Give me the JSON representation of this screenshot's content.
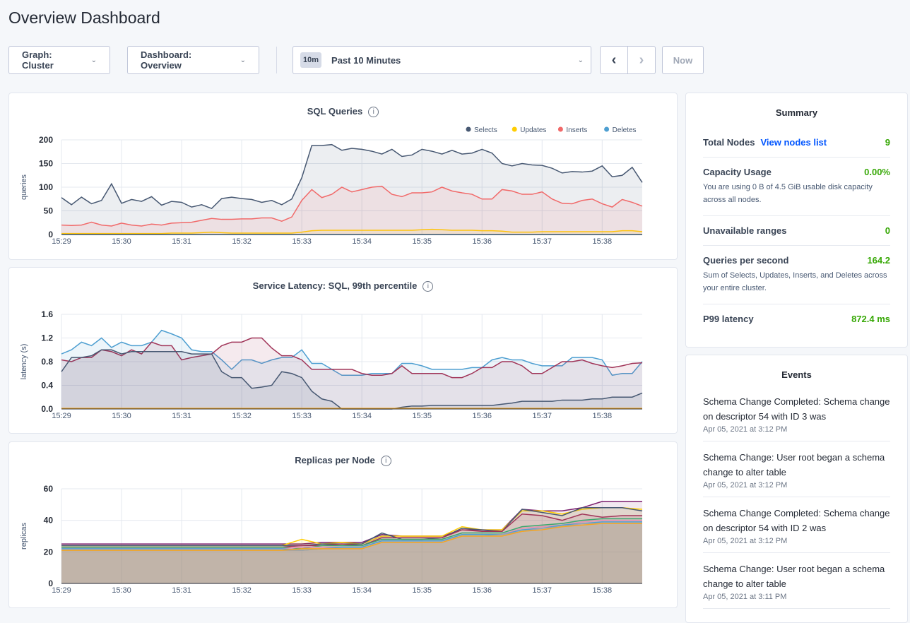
{
  "page": {
    "title": "Overview Dashboard"
  },
  "toolbar": {
    "graph": "Graph: Cluster",
    "dashboard": "Dashboard: Overview",
    "range_tag": "10m",
    "range": "Past 10 Minutes",
    "now": "Now",
    "chevron": "chevron-down-icon"
  },
  "colors": {
    "accent": "#0055ff",
    "good": "#37a806"
  },
  "chart_data": [
    {
      "id": "sql",
      "type": "area",
      "title": "SQL Queries",
      "ylabel": "queries",
      "ylim": [
        0,
        200
      ],
      "yticks": [
        0,
        50,
        100,
        150,
        200
      ],
      "xticks": [
        "15:29",
        "15:30",
        "15:31",
        "15:32",
        "15:33",
        "15:34",
        "15:35",
        "15:36",
        "15:37",
        "15:38"
      ],
      "x_start": "15:29:00",
      "x_step_seconds": 10,
      "legend": "top-right",
      "grid": true,
      "series": [
        {
          "name": "Selects",
          "color": "#475872",
          "values": [
            78,
            63,
            79,
            65,
            72,
            107,
            66,
            74,
            70,
            80,
            62,
            70,
            68,
            58,
            63,
            55,
            76,
            79,
            76,
            74,
            68,
            72,
            63,
            75,
            120,
            188,
            188,
            190,
            178,
            182,
            180,
            176,
            170,
            180,
            165,
            168,
            180,
            176,
            170,
            178,
            170,
            172,
            180,
            172,
            150,
            145,
            150,
            147,
            146,
            140,
            130,
            133,
            132,
            134,
            145,
            122,
            125,
            142,
            110
          ]
        },
        {
          "name": "Updates",
          "color": "#ffcd02",
          "values": [
            2,
            2,
            2,
            2,
            2,
            2,
            2,
            2,
            2,
            2,
            2,
            3,
            3,
            3,
            4,
            5,
            4,
            3,
            3,
            3,
            3,
            3,
            3,
            3,
            5,
            8,
            9,
            9,
            9,
            9,
            9,
            9,
            9,
            9,
            9,
            9,
            10,
            11,
            10,
            9,
            9,
            9,
            8,
            8,
            7,
            5,
            5,
            5,
            6,
            6,
            6,
            6,
            6,
            6,
            6,
            6,
            8,
            8,
            6
          ]
        },
        {
          "name": "Inserts",
          "color": "#f16969",
          "values": [
            20,
            19,
            20,
            26,
            20,
            18,
            24,
            20,
            18,
            22,
            20,
            24,
            25,
            26,
            30,
            34,
            32,
            32,
            33,
            33,
            35,
            35,
            28,
            37,
            72,
            95,
            78,
            85,
            100,
            90,
            95,
            100,
            102,
            85,
            80,
            88,
            88,
            90,
            100,
            92,
            88,
            85,
            75,
            75,
            95,
            92,
            85,
            85,
            90,
            75,
            66,
            65,
            72,
            75,
            65,
            58,
            74,
            68,
            60
          ]
        },
        {
          "name": "Deletes",
          "color": "#4e9fd1",
          "values": [
            0,
            0,
            0,
            0,
            0,
            0,
            0,
            0,
            0,
            0,
            0,
            0,
            0,
            0,
            0,
            0,
            0,
            0,
            0,
            0,
            0,
            0,
            0,
            0,
            0,
            0,
            0,
            0,
            0,
            0,
            0,
            0,
            0,
            0,
            0,
            0,
            0,
            0,
            0,
            0,
            0,
            0,
            0,
            0,
            0,
            0,
            0,
            0,
            0,
            0,
            0,
            0,
            0,
            0,
            0,
            0,
            0,
            0,
            0
          ]
        }
      ]
    },
    {
      "id": "lat",
      "type": "area",
      "title": "Service Latency: SQL, 99th percentile",
      "ylabel": "latency (s)",
      "ylim": [
        0,
        1.6
      ],
      "yticks": [
        "0.0",
        "0.4",
        "0.8",
        "1.2",
        "1.6"
      ],
      "xticks": [
        "15:29",
        "15:30",
        "15:31",
        "15:32",
        "15:33",
        "15:34",
        "15:35",
        "15:36",
        "15:37",
        "15:38"
      ],
      "x_start": "15:29:00",
      "x_step_seconds": 10,
      "grid": true,
      "series": [
        {
          "color": "#4e9fd1",
          "values": [
            0.93,
            1.0,
            1.13,
            1.07,
            1.2,
            1.04,
            1.13,
            1.07,
            1.07,
            1.13,
            1.33,
            1.27,
            1.2,
            1.0,
            0.97,
            0.97,
            0.83,
            0.67,
            0.83,
            0.83,
            0.77,
            0.83,
            0.87,
            0.87,
            1.0,
            0.77,
            0.77,
            0.67,
            0.57,
            0.57,
            0.57,
            0.6,
            0.6,
            0.6,
            0.77,
            0.77,
            0.73,
            0.67,
            0.67,
            0.67,
            0.67,
            0.7,
            0.7,
            0.83,
            0.87,
            0.83,
            0.83,
            0.77,
            0.73,
            0.73,
            0.73,
            0.87,
            0.87,
            0.87,
            0.83,
            0.57,
            0.6,
            0.6,
            0.8
          ]
        },
        {
          "color": "#a03458",
          "values": [
            0.83,
            0.8,
            0.87,
            0.87,
            1.0,
            0.97,
            0.9,
            1.0,
            0.93,
            1.13,
            1.07,
            1.07,
            0.83,
            0.87,
            0.9,
            0.93,
            1.07,
            1.13,
            1.13,
            1.2,
            1.2,
            1.03,
            0.9,
            0.9,
            0.83,
            0.67,
            0.67,
            0.67,
            0.67,
            0.67,
            0.6,
            0.57,
            0.57,
            0.6,
            0.73,
            0.6,
            0.6,
            0.6,
            0.6,
            0.53,
            0.53,
            0.6,
            0.7,
            0.7,
            0.8,
            0.8,
            0.73,
            0.6,
            0.6,
            0.7,
            0.8,
            0.8,
            0.83,
            0.77,
            0.73,
            0.7,
            0.73,
            0.77,
            0.78
          ]
        },
        {
          "color": "#475872",
          "values": [
            0.63,
            0.87,
            0.87,
            0.9,
            1.0,
            1.0,
            0.93,
            0.97,
            0.97,
            0.97,
            0.97,
            0.97,
            0.97,
            0.93,
            0.93,
            0.93,
            0.63,
            0.53,
            0.53,
            0.35,
            0.37,
            0.4,
            0.63,
            0.6,
            0.53,
            0.3,
            0.17,
            0.13,
            0,
            0,
            0,
            0,
            0,
            0,
            0.03,
            0.05,
            0.05,
            0.06,
            0.06,
            0.06,
            0.06,
            0.06,
            0.06,
            0.06,
            0.08,
            0.1,
            0.13,
            0.13,
            0.13,
            0.13,
            0.15,
            0.15,
            0.15,
            0.17,
            0.17,
            0.2,
            0.2,
            0.2,
            0.27
          ]
        },
        {
          "color": "#f5a623",
          "values": [
            0.01,
            0.01,
            0.01,
            0.01,
            0.01,
            0.01,
            0.01,
            0.01,
            0.01,
            0.01,
            0.01,
            0.01,
            0.01,
            0.01,
            0.01,
            0.01,
            0.01,
            0.01,
            0.01,
            0.01,
            0.01,
            0.01,
            0.01,
            0.01,
            0.01,
            0.01,
            0.01,
            0.01,
            0.01,
            0.01,
            0.01,
            0.01,
            0.01,
            0.01,
            0.01,
            0.01,
            0.01,
            0.01,
            0.01,
            0.01,
            0.01,
            0.01,
            0.01,
            0.01,
            0.01,
            0.01,
            0.01,
            0.01,
            0.01,
            0.01,
            0.01,
            0.01,
            0.01,
            0.01,
            0.01,
            0.01,
            0.01,
            0.01,
            0.01
          ]
        }
      ]
    },
    {
      "id": "rep",
      "type": "area",
      "title": "Replicas per Node",
      "ylabel": "replicas",
      "ylim": [
        0,
        60
      ],
      "yticks": [
        0,
        20,
        40,
        60
      ],
      "xticks": [
        "15:29",
        "15:30",
        "15:31",
        "15:32",
        "15:33",
        "15:34",
        "15:35",
        "15:36",
        "15:37",
        "15:38"
      ],
      "x_start": "15:29:00",
      "x_step_seconds": 20,
      "grid": true,
      "series": [
        {
          "color": "#7b1f6e",
          "values": [
            25,
            25,
            25,
            25,
            25,
            25,
            25,
            25,
            25,
            25,
            25,
            25,
            25,
            26,
            26,
            26,
            31,
            30,
            30,
            30,
            34,
            34,
            34,
            47,
            46,
            46,
            48,
            52,
            52,
            52
          ]
        },
        {
          "color": "#ffcd02",
          "values": [
            24,
            24,
            24,
            24,
            24,
            24,
            24,
            24,
            24,
            24,
            24,
            24,
            28,
            25,
            26,
            25,
            30,
            30,
            30,
            30,
            36,
            34,
            34,
            46,
            46,
            44,
            47,
            48,
            48,
            47
          ]
        },
        {
          "color": "#475872",
          "values": [
            24,
            24,
            24,
            24,
            24,
            24,
            24,
            24,
            24,
            24,
            24,
            24,
            24,
            25,
            25,
            25,
            32,
            28,
            28,
            29,
            35,
            34,
            33,
            47,
            45,
            43,
            48,
            48,
            48,
            46
          ]
        },
        {
          "color": "#a03458",
          "values": [
            23,
            23,
            23,
            23,
            23,
            23,
            23,
            23,
            23,
            23,
            23,
            23,
            24,
            24,
            25,
            24,
            29,
            29,
            29,
            29,
            34,
            33,
            33,
            44,
            43,
            40,
            44,
            42,
            43,
            43
          ]
        },
        {
          "color": "#3aa76d",
          "values": [
            23,
            23,
            23,
            23,
            23,
            23,
            23,
            23,
            23,
            23,
            23,
            23,
            22,
            24,
            24,
            24,
            28,
            28,
            28,
            28,
            32,
            32,
            32,
            36,
            37,
            38,
            40,
            41,
            41,
            41
          ]
        },
        {
          "color": "#e88fb0",
          "values": [
            22,
            22,
            22,
            22,
            22,
            22,
            22,
            22,
            22,
            22,
            22,
            22,
            23,
            23,
            23,
            23,
            27,
            27,
            27,
            27,
            31,
            31,
            31,
            35,
            36,
            37,
            39,
            40,
            40,
            40
          ]
        },
        {
          "color": "#4e9fd1",
          "values": [
            22,
            22,
            22,
            22,
            22,
            22,
            22,
            22,
            22,
            22,
            22,
            22,
            21,
            22,
            23,
            23,
            27,
            27,
            27,
            27,
            31,
            31,
            31,
            34,
            35,
            37,
            38,
            39,
            39,
            39
          ]
        },
        {
          "color": "#9aa3b2",
          "values": [
            21,
            21,
            21,
            21,
            21,
            21,
            21,
            21,
            21,
            21,
            21,
            21,
            21,
            22,
            22,
            22,
            26,
            26,
            26,
            26,
            30,
            30,
            31,
            33,
            35,
            36,
            38,
            38,
            38,
            38
          ]
        },
        {
          "color": "#f5a623",
          "values": [
            21,
            21,
            21,
            21,
            21,
            21,
            21,
            21,
            21,
            21,
            21,
            21,
            22,
            22,
            22,
            22,
            26,
            26,
            26,
            26,
            30,
            30,
            30,
            33,
            34,
            36,
            37,
            38,
            38,
            38
          ]
        }
      ]
    }
  ],
  "summary": {
    "title": "Summary",
    "rows": [
      {
        "label": "Total Nodes",
        "link": "View nodes list",
        "value": "9"
      },
      {
        "label": "Capacity Usage",
        "value": "0.00%",
        "desc": "You are using 0 B of 4.5 GiB usable disk capacity across all nodes."
      },
      {
        "label": "Unavailable ranges",
        "value": "0"
      },
      {
        "label": "Queries per second",
        "value": "164.2",
        "desc": "Sum of Selects, Updates, Inserts, and Deletes across your entire cluster."
      },
      {
        "label": "P99 latency",
        "value": "872.4 ms"
      }
    ]
  },
  "events": {
    "title": "Events",
    "items": [
      {
        "text": "Schema Change Completed: Schema change on descriptor 54 with ID 3 was",
        "date": "Apr 05, 2021 at 3:12 PM"
      },
      {
        "text": "Schema Change: User root began a schema change to alter table",
        "date": "Apr 05, 2021 at 3:12 PM"
      },
      {
        "text": "Schema Change Completed: Schema change on descriptor 54 with ID 2 was",
        "date": "Apr 05, 2021 at 3:12 PM"
      },
      {
        "text": "Schema Change: User root began a schema change to alter table",
        "date": "Apr 05, 2021 at 3:11 PM"
      }
    ]
  }
}
